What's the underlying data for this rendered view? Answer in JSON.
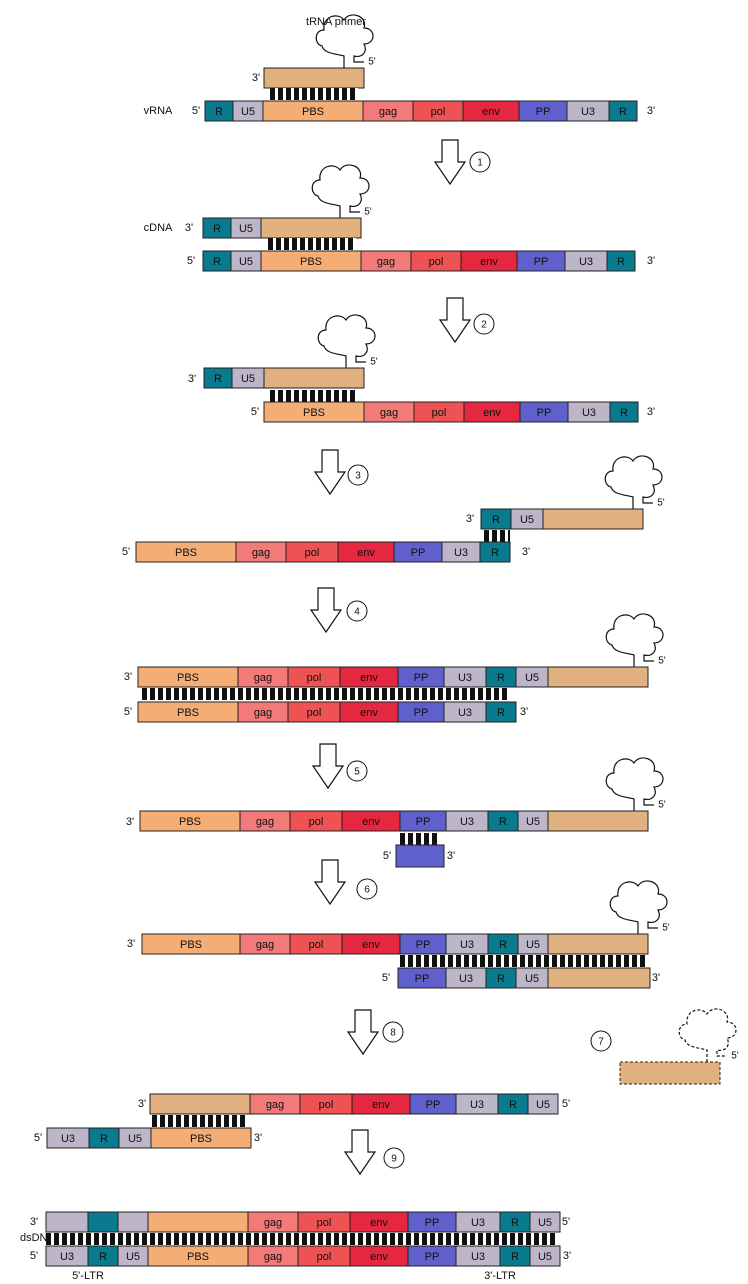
{
  "colors": {
    "R": "#0a7a8e",
    "U5": "#bcb6c8",
    "U3": "#bcb6c8",
    "PBS": "#f5ad76",
    "gag": "#f27a78",
    "pol": "#ef5252",
    "env": "#e5273f",
    "PP": "#6060cc",
    "tan": "#e0b07e",
    "stroke": "#222222",
    "arrow_fill": "#ffffff"
  },
  "labels": {
    "trna_primer": "tRNA primer",
    "vrna": "vRNA",
    "cdna": "cDNA",
    "dsdna": "dsDNA",
    "ltr5": "5'-LTR",
    "ltr3": "3'-LTR",
    "p5": "5'",
    "p3": "3'"
  },
  "segments": {
    "R": "R",
    "U5": "U5",
    "U3": "U3",
    "PBS": "PBS",
    "gag": "gag",
    "pol": "pol",
    "env": "env",
    "PP": "PP"
  },
  "steps": [
    "1",
    "2",
    "3",
    "4",
    "5",
    "6",
    "7",
    "8",
    "9"
  ]
}
